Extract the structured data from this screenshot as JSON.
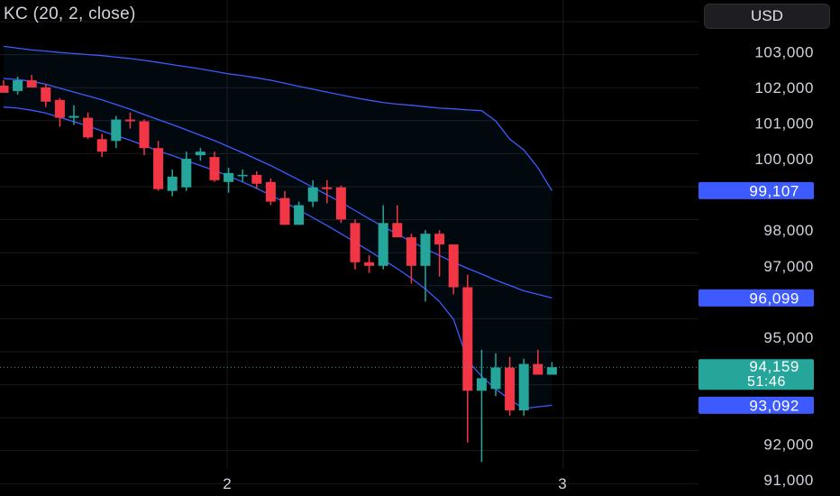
{
  "indicator": {
    "label": "KC (20, 2, close)"
  },
  "currency": {
    "label": "USD"
  },
  "colors": {
    "background": "#000000",
    "band": "#3d5afe",
    "up": "#26a69a",
    "down": "#f23645",
    "grid": "#1a1a1a",
    "text": "#d1d4dc"
  },
  "chart_data": {
    "type": "candlestick",
    "title": "KC (20, 2, close)",
    "y_ticks": [
      91000,
      92000,
      95000,
      97000,
      98000,
      100000,
      101000,
      102000,
      103000
    ],
    "y_tick_labels": [
      "91,000",
      "92,000",
      "95,000",
      "97,000",
      "98,000",
      "100,000",
      "101,000",
      "102,000",
      "103,000"
    ],
    "x_tick_labels": [
      "2",
      "3"
    ],
    "ylim": [
      90550,
      104450
    ],
    "grid": true,
    "price_tags": [
      {
        "name": "upper",
        "value": 99107,
        "label": "99,107"
      },
      {
        "name": "middle",
        "value": 96099,
        "label": "96,099"
      },
      {
        "name": "last",
        "value": 94159,
        "label": "94,159",
        "countdown": "51:46"
      },
      {
        "name": "lower",
        "value": 93092,
        "label": "93,092"
      }
    ],
    "candles": [
      {
        "o": 102050,
        "h": 102200,
        "l": 101900,
        "c": 101850
      },
      {
        "o": 101900,
        "h": 102300,
        "l": 101800,
        "c": 102200
      },
      {
        "o": 102200,
        "h": 102350,
        "l": 102100,
        "c": 102000
      },
      {
        "o": 102000,
        "h": 102100,
        "l": 101450,
        "c": 101600
      },
      {
        "o": 101650,
        "h": 101700,
        "l": 100900,
        "c": 101150
      },
      {
        "o": 101150,
        "h": 101500,
        "l": 100950,
        "c": 101200
      },
      {
        "o": 101150,
        "h": 101300,
        "l": 100550,
        "c": 100600
      },
      {
        "o": 100550,
        "h": 100700,
        "l": 100050,
        "c": 100200
      },
      {
        "o": 100500,
        "h": 101200,
        "l": 100300,
        "c": 101100
      },
      {
        "o": 101100,
        "h": 101300,
        "l": 100850,
        "c": 101050
      },
      {
        "o": 101050,
        "h": 101100,
        "l": 100100,
        "c": 100300
      },
      {
        "o": 100300,
        "h": 100500,
        "l": 99100,
        "c": 99150
      },
      {
        "o": 99100,
        "h": 99700,
        "l": 98950,
        "c": 99500
      },
      {
        "o": 99200,
        "h": 100200,
        "l": 99100,
        "c": 100000
      },
      {
        "o": 100100,
        "h": 100300,
        "l": 99950,
        "c": 100200
      },
      {
        "o": 100050,
        "h": 100200,
        "l": 99350,
        "c": 99400
      },
      {
        "o": 99350,
        "h": 99750,
        "l": 99050,
        "c": 99600
      },
      {
        "o": 99550,
        "h": 99700,
        "l": 99350,
        "c": 99550
      },
      {
        "o": 99550,
        "h": 99650,
        "l": 99150,
        "c": 99300
      },
      {
        "o": 99350,
        "h": 99450,
        "l": 98700,
        "c": 98800
      },
      {
        "o": 98900,
        "h": 99100,
        "l": 98150,
        "c": 98150
      },
      {
        "o": 98150,
        "h": 98800,
        "l": 98150,
        "c": 98700
      },
      {
        "o": 98800,
        "h": 99400,
        "l": 98650,
        "c": 99200
      },
      {
        "o": 99200,
        "h": 99400,
        "l": 98750,
        "c": 99150
      },
      {
        "o": 99200,
        "h": 99250,
        "l": 98200,
        "c": 98300
      },
      {
        "o": 98200,
        "h": 98300,
        "l": 96900,
        "c": 97100
      },
      {
        "o": 97100,
        "h": 97300,
        "l": 96800,
        "c": 97000
      },
      {
        "o": 97000,
        "h": 98700,
        "l": 96900,
        "c": 98200
      },
      {
        "o": 98200,
        "h": 98700,
        "l": 97800,
        "c": 97800
      },
      {
        "o": 97800,
        "h": 97900,
        "l": 96500,
        "c": 97000
      },
      {
        "o": 97000,
        "h": 98000,
        "l": 96000,
        "c": 97900
      },
      {
        "o": 97900,
        "h": 98000,
        "l": 96700,
        "c": 97600
      },
      {
        "o": 97600,
        "h": 97600,
        "l": 96200,
        "c": 96400
      },
      {
        "o": 96400,
        "h": 96750,
        "l": 92050,
        "c": 93500
      },
      {
        "o": 93500,
        "h": 94650,
        "l": 91500,
        "c": 93850
      },
      {
        "o": 93550,
        "h": 94550,
        "l": 93350,
        "c": 94150
      },
      {
        "o": 94150,
        "h": 94450,
        "l": 92800,
        "c": 92950
      },
      {
        "o": 92950,
        "h": 94400,
        "l": 92800,
        "c": 94250
      },
      {
        "o": 94250,
        "h": 94650,
        "l": 93950,
        "c": 93950
      },
      {
        "o": 93950,
        "h": 94300,
        "l": 93950,
        "c": 94159
      }
    ],
    "keltner": {
      "upper": [
        103150,
        103100,
        103050,
        103020,
        102980,
        102950,
        102920,
        102890,
        102850,
        102810,
        102760,
        102700,
        102640,
        102580,
        102520,
        102450,
        102380,
        102330,
        102270,
        102200,
        102120,
        102030,
        101950,
        101870,
        101790,
        101710,
        101640,
        101580,
        101530,
        101500,
        101460,
        101420,
        101400,
        101370,
        101350,
        101060,
        100550,
        100250,
        99750,
        99107
      ],
      "middle": [
        102250,
        102220,
        102170,
        102090,
        101980,
        101870,
        101760,
        101650,
        101520,
        101390,
        101240,
        101100,
        100960,
        100810,
        100660,
        100510,
        100340,
        100170,
        99990,
        99810,
        99610,
        99410,
        99200,
        98990,
        98780,
        98550,
        98320,
        98100,
        97890,
        97680,
        97480,
        97290,
        97100,
        96930,
        96770,
        96600,
        96450,
        96300,
        96200,
        96099
      ],
      "lower": [
        101450,
        101420,
        101360,
        101280,
        101160,
        101040,
        100920,
        100780,
        100650,
        100520,
        100370,
        100220,
        100090,
        99950,
        99810,
        99670,
        99520,
        99350,
        99170,
        98980,
        98780,
        98570,
        98350,
        98130,
        97900,
        97660,
        97420,
        97170,
        96920,
        96650,
        96350,
        96000,
        95500,
        94350,
        93900,
        93550,
        93250,
        93000,
        93050,
        93092
      ]
    }
  }
}
